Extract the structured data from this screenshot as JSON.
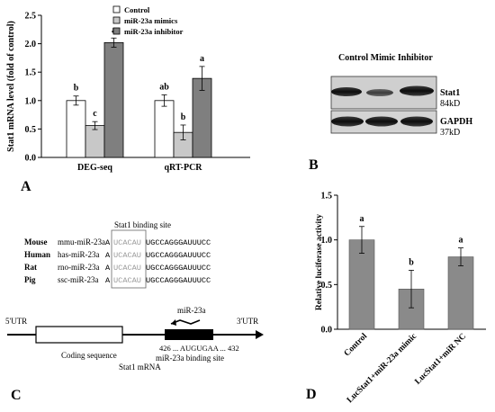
{
  "panels": {
    "A": "A",
    "B": "B",
    "C": "C",
    "D": "D"
  },
  "chart_data": [
    {
      "panel": "A",
      "type": "bar",
      "ylabel": "Stat1 mRNA level (fold of control)",
      "ylim": [
        0,
        2.5
      ],
      "yticks": [
        "0.0",
        "0.5",
        "1.0",
        "1.5",
        "2.0",
        "2.5"
      ],
      "categories": [
        "DEG-seq",
        "qRT-PCR"
      ],
      "series": [
        {
          "name": "Control",
          "color": "#ffffff",
          "values": [
            1.0,
            1.0
          ],
          "errors": [
            0.08,
            0.1
          ],
          "letters": [
            "b",
            "ab"
          ]
        },
        {
          "name": "miR-23a mimics",
          "color": "#c8c8c8",
          "values": [
            0.56,
            0.44
          ],
          "errors": [
            0.07,
            0.13
          ],
          "letters": [
            "c",
            "b"
          ]
        },
        {
          "name": "miR-23a inhibitor",
          "color": "#7f7f7f",
          "values": [
            2.02,
            1.39
          ],
          "errors": [
            0.08,
            0.21
          ],
          "letters": [
            "a",
            "a"
          ]
        }
      ],
      "legend_position": "top-left"
    },
    {
      "panel": "D",
      "type": "bar",
      "ylabel": "Relative luciferase activity",
      "ylim": [
        0,
        1.5
      ],
      "yticks": [
        "0.0",
        "0.5",
        "1.0",
        "1.5"
      ],
      "categories": [
        "Control",
        "LucStat1+miR-23a mimic",
        "LucStat1+miR NC"
      ],
      "values": [
        1.0,
        0.45,
        0.81
      ],
      "errors": [
        0.15,
        0.21,
        0.1
      ],
      "letters": [
        "a",
        "b",
        "a"
      ],
      "color": "#8a8a8a"
    }
  ],
  "blot": {
    "header": "Control Mimic Inhibitor",
    "rows": [
      {
        "name": "Stat1",
        "size": "84kD"
      },
      {
        "name": "GAPDH",
        "size": "37kD"
      }
    ]
  },
  "panel_c": {
    "binding_site_title": "Stat1 binding site",
    "species": [
      {
        "name": "Mouse",
        "mirna": "mmu-miR-23a",
        "prefix": "A",
        "site": "UCACAU",
        "suffix": "UGCCAGGGAUUUCC"
      },
      {
        "name": "Human",
        "mirna": "has-miR-23a",
        "prefix": "A",
        "site": "UCACAU",
        "suffix": "UGCCAGGGAUUUCC"
      },
      {
        "name": "Rat",
        "mirna": "rno-miR-23a",
        "prefix": "A",
        "site": "UCACAU",
        "suffix": "UGCCAGGGAUUUCC"
      },
      {
        "name": "Pig",
        "mirna": "ssc-miR-23a",
        "prefix": "A",
        "site": "UCACAU",
        "suffix": "UGCCAGGGAUUUCC"
      }
    ],
    "utr5": "5'UTR",
    "utr3": "3'UTR",
    "mirna_label": "miR-23a",
    "site_seq": "426 ... AUGUGAA ... 432",
    "coding_label": "Coding sequence",
    "binding_label": "miR-23a binding site",
    "mrna_label": "Stat1 mRNA"
  }
}
